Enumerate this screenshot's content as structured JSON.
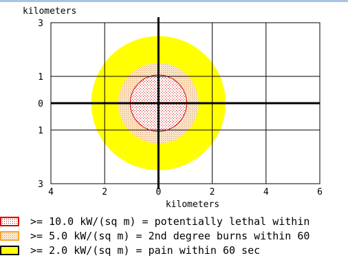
{
  "chart_data": {
    "type": "threat-zone",
    "ylabel": "kilometers",
    "xlabel": "kilometers",
    "x_ticks": [
      "4",
      "2",
      "0",
      "2",
      "4",
      "6"
    ],
    "y_ticks": [
      "3",
      "1",
      "0",
      "1",
      "3"
    ],
    "xlim": [
      -4,
      6
    ],
    "ylim": [
      -3,
      3
    ],
    "grid": true,
    "zones": [
      {
        "name": "red",
        "level": ">= 10.0 kW/(sq m)",
        "radius_km": 1.05,
        "color": "#dd0000",
        "pattern": "dots"
      },
      {
        "name": "orange",
        "level": ">= 5.0 kW/(sq m)",
        "radius_km": 1.5,
        "color": "#f5a623",
        "pattern": "stipple"
      },
      {
        "name": "yellow",
        "level": ">= 2.0 kW/(sq m)",
        "radius_km": 2.5,
        "color": "#ffff00",
        "pattern": "solid"
      }
    ]
  },
  "legend": [
    {
      "text": ">= 10.0 kW/(sq m) = potentially lethal within",
      "color": "#dd0000",
      "pattern": "dots"
    },
    {
      "text": ">= 5.0 kW/(sq m) = 2nd degree burns within 60",
      "color": "#f5a623",
      "pattern": "stipple"
    },
    {
      "text": ">= 2.0 kW/(sq m) = pain within 60 sec",
      "color": "#000000",
      "pattern": "solid-yellow"
    }
  ]
}
